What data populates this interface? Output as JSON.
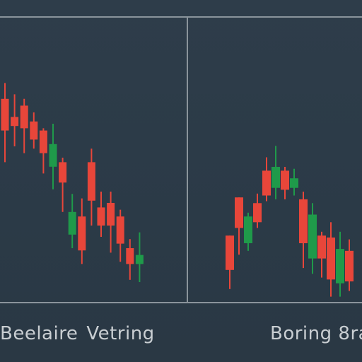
{
  "colors": {
    "background": "#2b3a47",
    "frame": "#8a949b",
    "bullish": "#1f9a4a",
    "bearish": "#e8463a",
    "caption": "#c9ced2"
  },
  "captions": {
    "left_word1": "Beelaire",
    "left_word2": "Vetring",
    "right": "Boring 8ra"
  },
  "chart_data": [
    {
      "type": "candlestick",
      "title": "",
      "ylim": [
        0,
        100
      ],
      "grid": false,
      "series": [
        {
          "open": 86,
          "close": 72,
          "high": 93,
          "low": 58
        },
        {
          "open": 78,
          "close": 74,
          "high": 88,
          "low": 65
        },
        {
          "open": 83,
          "close": 73,
          "high": 86,
          "low": 62
        },
        {
          "open": 76,
          "close": 68,
          "high": 80,
          "low": 64
        },
        {
          "open": 72,
          "close": 62,
          "high": 73,
          "low": 53
        },
        {
          "open": 56,
          "close": 66,
          "high": 75,
          "low": 46
        },
        {
          "open": 58,
          "close": 49,
          "high": 60,
          "low": 36
        },
        {
          "open": 26,
          "close": 36,
          "high": 44,
          "low": 20
        },
        {
          "open": 34,
          "close": 19,
          "high": 42,
          "low": 13
        },
        {
          "open": 58,
          "close": 41,
          "high": 64,
          "low": 30
        },
        {
          "open": 38,
          "close": 30,
          "high": 45,
          "low": 25
        },
        {
          "open": 40,
          "close": 30,
          "high": 45,
          "low": 18
        },
        {
          "open": 34,
          "close": 22,
          "high": 37,
          "low": 14
        },
        {
          "open": 20,
          "close": 13,
          "high": 24,
          "low": 6
        },
        {
          "open": 13,
          "close": 17,
          "high": 27,
          "low": 5
        }
      ]
    },
    {
      "type": "candlestick",
      "title": "",
      "ylim": [
        0,
        100
      ],
      "grid": false,
      "series": [
        {
          "open": 34,
          "close": 16,
          "high": 34,
          "low": 6
        },
        {
          "open": 54,
          "close": 38,
          "high": 54,
          "low": 24
        },
        {
          "open": 30,
          "close": 44,
          "high": 46,
          "low": 26
        },
        {
          "open": 51,
          "close": 41,
          "high": 56,
          "low": 38
        },
        {
          "open": 68,
          "close": 55,
          "high": 75,
          "low": 52
        },
        {
          "open": 59,
          "close": 70,
          "high": 81,
          "low": 53
        },
        {
          "open": 68,
          "close": 58,
          "high": 70,
          "low": 53
        },
        {
          "open": 59,
          "close": 64,
          "high": 69,
          "low": 55
        },
        {
          "open": 53,
          "close": 30,
          "high": 57,
          "low": 17
        },
        {
          "open": 22,
          "close": 45,
          "high": 51,
          "low": 14
        },
        {
          "open": 34,
          "close": 22,
          "high": 36,
          "low": 12
        },
        {
          "open": 33,
          "close": 11,
          "high": 41,
          "low": 2
        },
        {
          "open": 9,
          "close": 27,
          "high": 36,
          "low": 2
        },
        {
          "open": 26,
          "close": 10,
          "high": 32,
          "low": 5
        }
      ]
    }
  ]
}
